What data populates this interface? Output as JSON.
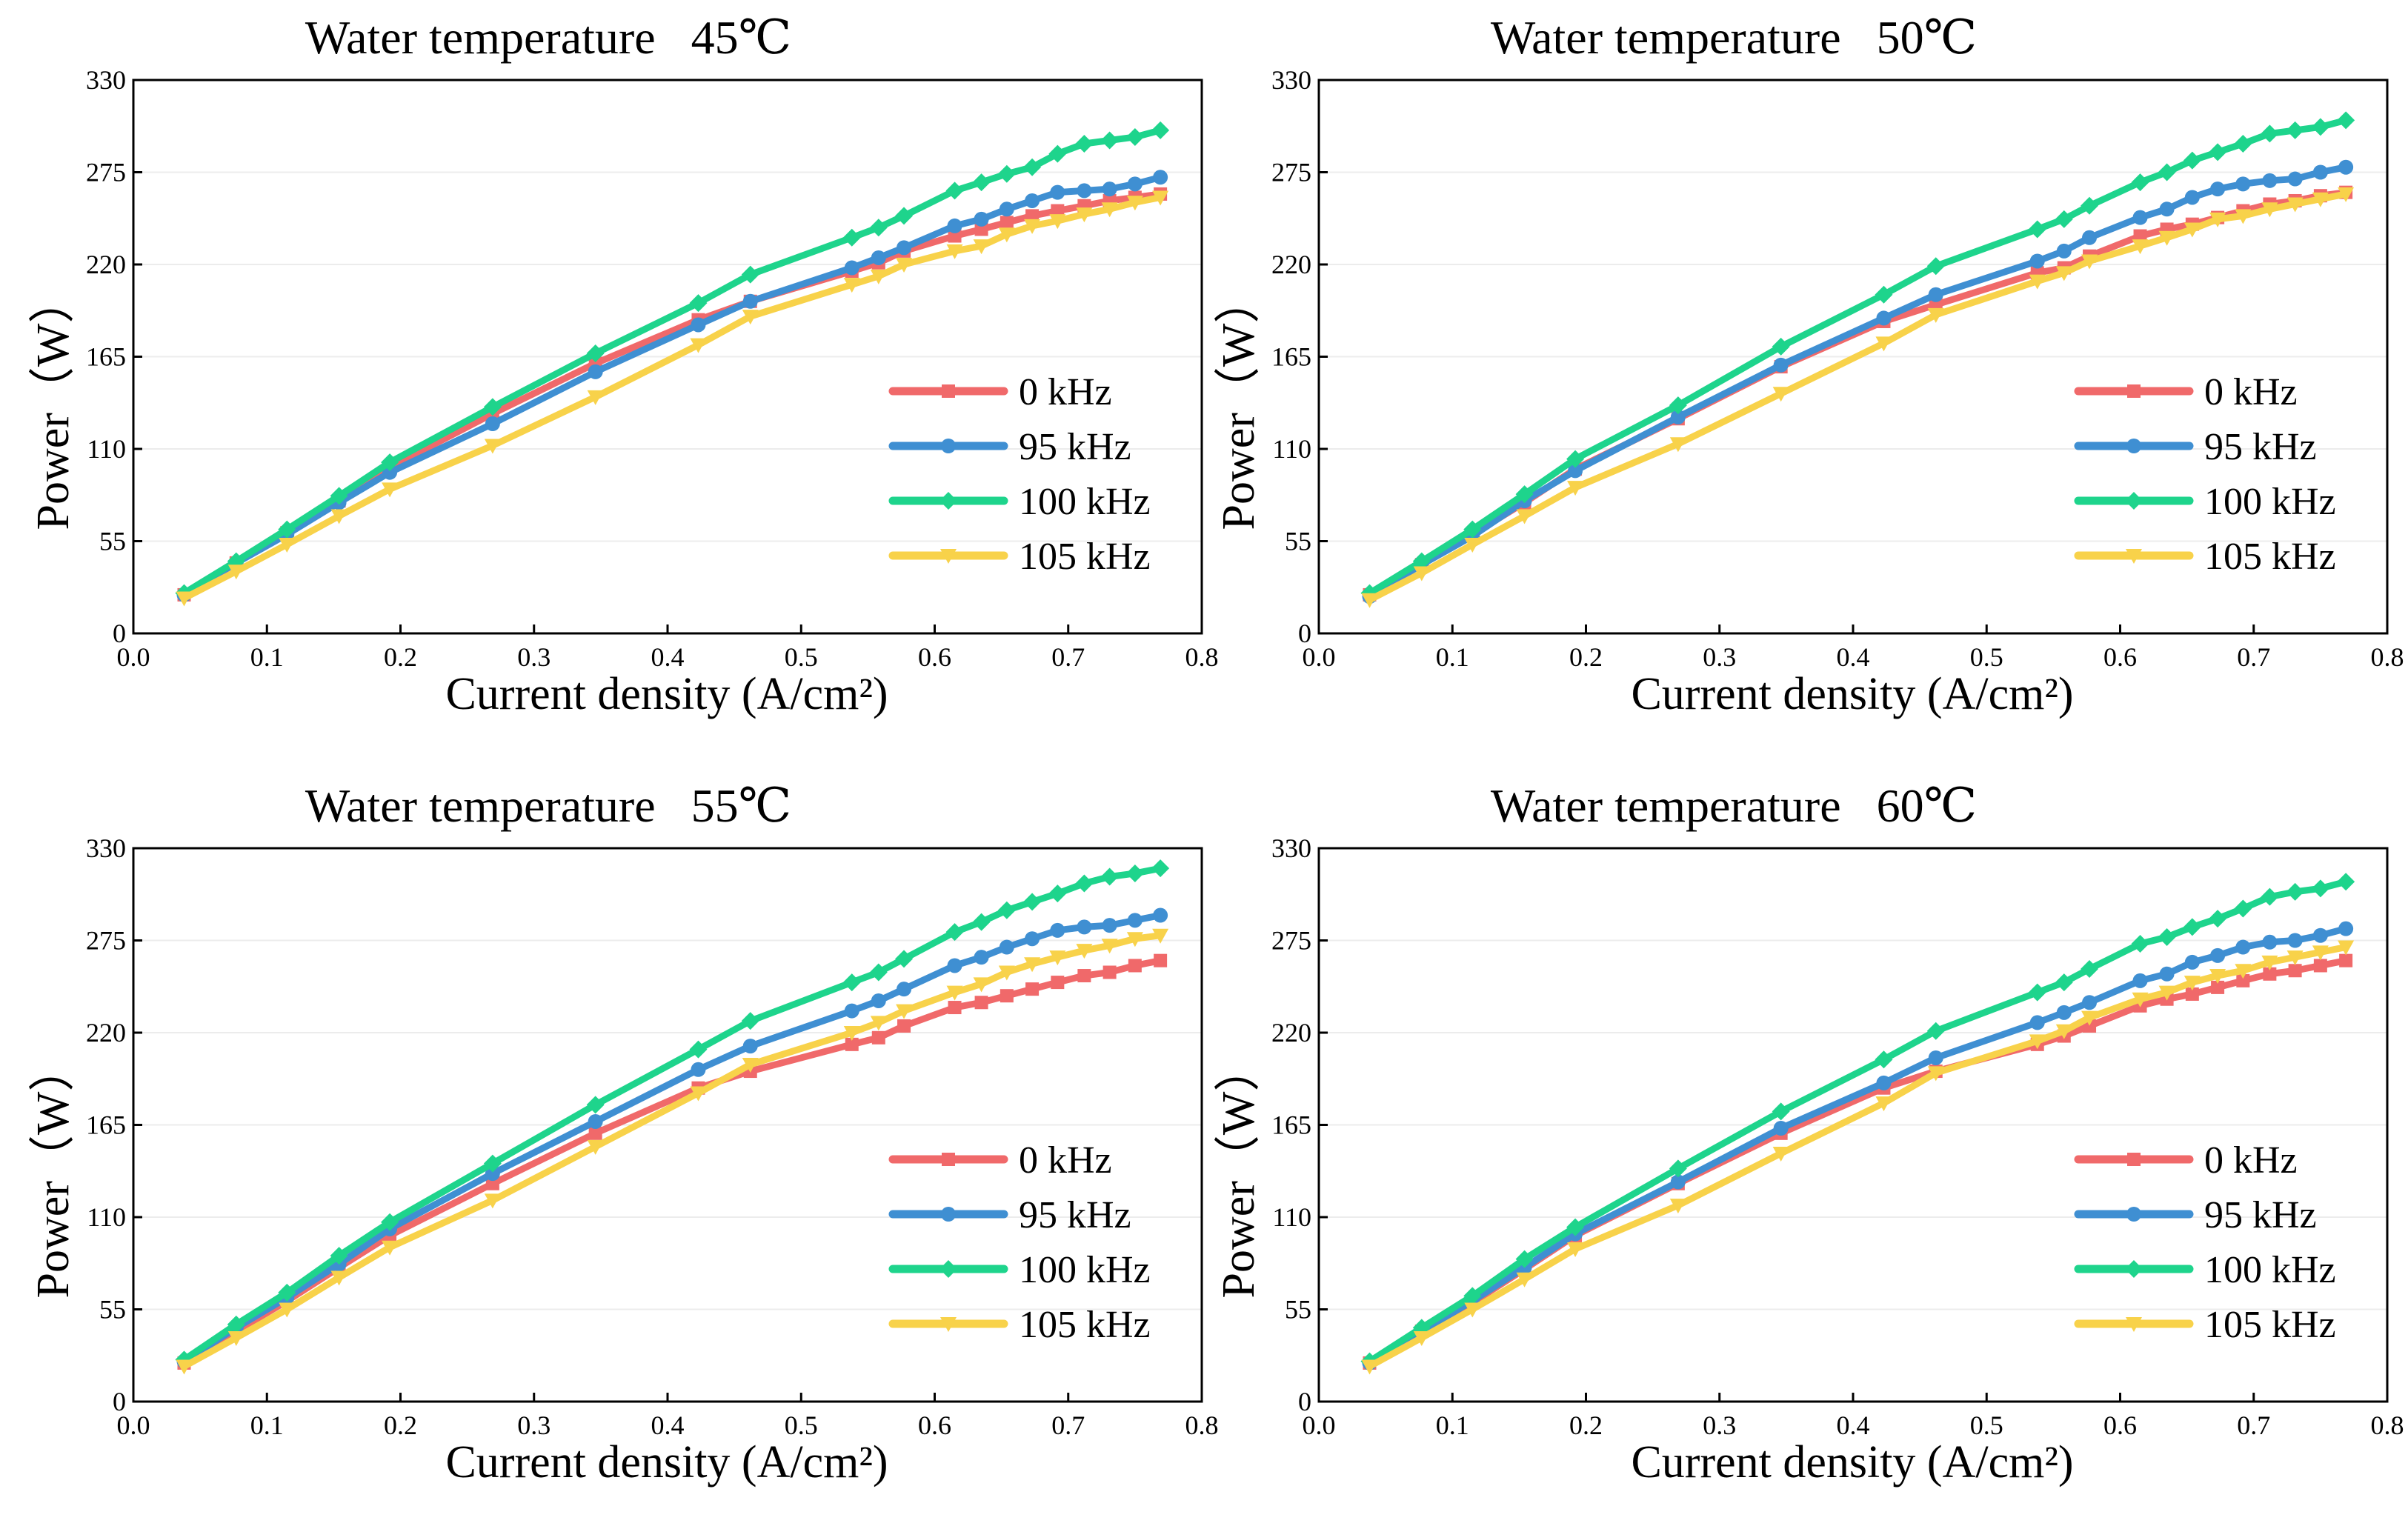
{
  "chart_data": [
    {
      "type": "line",
      "title": "Water temperature   45℃",
      "xlabel": "Current density (A/cm²)",
      "ylabel": "Power（W）",
      "xlim": [
        0.0,
        0.8
      ],
      "ylim": [
        0,
        330
      ],
      "xticks": [
        "0.0",
        "0.1",
        "0.2",
        "0.3",
        "0.4",
        "0.5",
        "0.6",
        "0.7",
        "0.8"
      ],
      "yticks": [
        "0",
        "55",
        "110",
        "165",
        "220",
        "275",
        "330"
      ],
      "x": [
        0.038,
        0.077,
        0.115,
        0.154,
        0.192,
        0.269,
        0.346,
        0.423,
        0.462,
        0.538,
        0.558,
        0.577,
        0.615,
        0.635,
        0.654,
        0.673,
        0.692,
        0.712,
        0.731,
        0.75,
        0.769
      ],
      "series": [
        {
          "name": "0 kHz",
          "color": "#F0696A",
          "marker": "square",
          "values": [
            23,
            42,
            60,
            79,
            99,
            131,
            161,
            187,
            198,
            216,
            221,
            228,
            237,
            241,
            245,
            249,
            252,
            255,
            258,
            260,
            262
          ]
        },
        {
          "name": "95 kHz",
          "color": "#3F8FD2",
          "marker": "circle",
          "values": [
            23,
            42,
            59,
            78,
            96,
            125,
            156,
            184,
            198,
            218,
            224,
            230,
            243,
            247,
            253,
            258,
            263,
            264,
            265,
            268,
            272
          ]
        },
        {
          "name": "100 kHz",
          "color": "#1ED48C",
          "marker": "diamond",
          "values": [
            24,
            43,
            62,
            82,
            102,
            135,
            167,
            197,
            214,
            236,
            242,
            249,
            264,
            269,
            274,
            278,
            286,
            292,
            294,
            296,
            300
          ]
        },
        {
          "name": "105 kHz",
          "color": "#F8D24A",
          "marker": "triangle-down",
          "values": [
            21,
            37,
            53,
            70,
            86,
            112,
            141,
            172,
            189,
            208,
            213,
            220,
            228,
            231,
            238,
            243,
            246,
            250,
            253,
            257,
            260
          ]
        }
      ]
    },
    {
      "type": "line",
      "title": "Water temperature   50℃",
      "xlabel": "Current density (A/cm²)",
      "ylabel": "Power（W）",
      "xlim": [
        0.0,
        0.8
      ],
      "ylim": [
        0,
        330
      ],
      "xticks": [
        "0.0",
        "0.1",
        "0.2",
        "0.3",
        "0.4",
        "0.5",
        "0.6",
        "0.7",
        "0.8"
      ],
      "yticks": [
        "0",
        "55",
        "110",
        "165",
        "220",
        "275",
        "330"
      ],
      "x": [
        0.038,
        0.077,
        0.115,
        0.154,
        0.192,
        0.269,
        0.346,
        0.423,
        0.462,
        0.538,
        0.558,
        0.577,
        0.615,
        0.635,
        0.654,
        0.673,
        0.692,
        0.712,
        0.731,
        0.75,
        0.769
      ],
      "series": [
        {
          "name": "0 kHz",
          "color": "#F0696A",
          "marker": "square",
          "values": [
            23,
            41,
            59,
            78,
            98,
            128,
            159,
            186,
            196,
            215,
            218,
            225,
            237,
            241,
            244,
            248,
            252,
            256,
            258,
            261,
            263
          ]
        },
        {
          "name": "95 kHz",
          "color": "#3F8FD2",
          "marker": "circle",
          "values": [
            22,
            41,
            58,
            79,
            97,
            129,
            160,
            188,
            202,
            222,
            228,
            236,
            248,
            253,
            260,
            265,
            268,
            270,
            271,
            275,
            278
          ]
        },
        {
          "name": "100 kHz",
          "color": "#1ED48C",
          "marker": "diamond",
          "values": [
            24,
            43,
            62,
            83,
            104,
            136,
            171,
            202,
            219,
            241,
            247,
            255,
            269,
            275,
            282,
            287,
            292,
            298,
            300,
            302,
            306
          ]
        },
        {
          "name": "105 kHz",
          "color": "#F8D24A",
          "marker": "triangle-down",
          "values": [
            20,
            36,
            53,
            70,
            87,
            113,
            143,
            173,
            190,
            210,
            215,
            222,
            231,
            236,
            241,
            247,
            249,
            253,
            256,
            259,
            262
          ]
        }
      ]
    },
    {
      "type": "line",
      "title": "Water temperature   55℃",
      "xlabel": "Current density (A/cm²)",
      "ylabel": "Power（W）",
      "xlim": [
        0.0,
        0.8
      ],
      "ylim": [
        0,
        330
      ],
      "xticks": [
        "0.0",
        "0.1",
        "0.2",
        "0.3",
        "0.4",
        "0.5",
        "0.6",
        "0.7",
        "0.8"
      ],
      "yticks": [
        "0",
        "55",
        "110",
        "165",
        "220",
        "275",
        "330"
      ],
      "x": [
        0.038,
        0.077,
        0.115,
        0.154,
        0.192,
        0.269,
        0.346,
        0.423,
        0.462,
        0.538,
        0.558,
        0.577,
        0.615,
        0.635,
        0.654,
        0.673,
        0.692,
        0.712,
        0.731,
        0.75,
        0.769
      ],
      "series": [
        {
          "name": "0 kHz",
          "color": "#F0696A",
          "marker": "square",
          "values": [
            23,
            42,
            60,
            80,
            99,
            130,
            160,
            187,
            197,
            213,
            217,
            224,
            235,
            238,
            242,
            246,
            250,
            254,
            256,
            260,
            263
          ]
        },
        {
          "name": "95 kHz",
          "color": "#3F8FD2",
          "marker": "circle",
          "values": [
            24,
            44,
            62,
            82,
            103,
            136,
            167,
            198,
            212,
            233,
            239,
            246,
            260,
            265,
            271,
            276,
            281,
            283,
            284,
            287,
            290
          ]
        },
        {
          "name": "100 kHz",
          "color": "#1ED48C",
          "marker": "diamond",
          "values": [
            25,
            46,
            65,
            87,
            107,
            142,
            177,
            210,
            227,
            250,
            256,
            264,
            280,
            286,
            293,
            298,
            303,
            309,
            313,
            315,
            318
          ]
        },
        {
          "name": "105 kHz",
          "color": "#F8D24A",
          "marker": "triangle-down",
          "values": [
            21,
            38,
            55,
            74,
            92,
            120,
            152,
            184,
            201,
            220,
            226,
            233,
            244,
            249,
            256,
            261,
            265,
            269,
            272,
            276,
            278
          ]
        }
      ]
    },
    {
      "type": "line",
      "title": "Water temperature   60℃",
      "xlabel": "Current density (A/cm²)",
      "ylabel": "Power（W）",
      "xlim": [
        0.0,
        0.8
      ],
      "ylim": [
        0,
        330
      ],
      "xticks": [
        "0.0",
        "0.1",
        "0.2",
        "0.3",
        "0.4",
        "0.5",
        "0.6",
        "0.7",
        "0.8"
      ],
      "yticks": [
        "0",
        "55",
        "110",
        "165",
        "220",
        "275",
        "330"
      ],
      "x": [
        0.038,
        0.077,
        0.115,
        0.154,
        0.192,
        0.269,
        0.346,
        0.423,
        0.462,
        0.538,
        0.558,
        0.577,
        0.615,
        0.635,
        0.654,
        0.673,
        0.692,
        0.712,
        0.731,
        0.75,
        0.769
      ],
      "series": [
        {
          "name": "0 kHz",
          "color": "#F0696A",
          "marker": "square",
          "values": [
            23,
            42,
            59,
            79,
            99,
            130,
            160,
            187,
            197,
            213,
            218,
            224,
            236,
            240,
            243,
            247,
            251,
            255,
            257,
            260,
            263
          ]
        },
        {
          "name": "95 kHz",
          "color": "#3F8FD2",
          "marker": "circle",
          "values": [
            23,
            42,
            60,
            80,
            100,
            131,
            163,
            190,
            205,
            226,
            232,
            238,
            251,
            255,
            262,
            266,
            271,
            274,
            275,
            278,
            282
          ]
        },
        {
          "name": "100 kHz",
          "color": "#1ED48C",
          "marker": "diamond",
          "values": [
            24,
            44,
            63,
            85,
            104,
            139,
            173,
            204,
            221,
            244,
            250,
            258,
            273,
            277,
            283,
            288,
            294,
            301,
            304,
            306,
            310
          ]
        },
        {
          "name": "105 kHz",
          "color": "#F8D24A",
          "marker": "triangle-down",
          "values": [
            21,
            38,
            55,
            73,
            91,
            117,
            148,
            178,
            196,
            215,
            221,
            229,
            240,
            244,
            250,
            254,
            257,
            262,
            265,
            268,
            271
          ]
        }
      ]
    }
  ]
}
